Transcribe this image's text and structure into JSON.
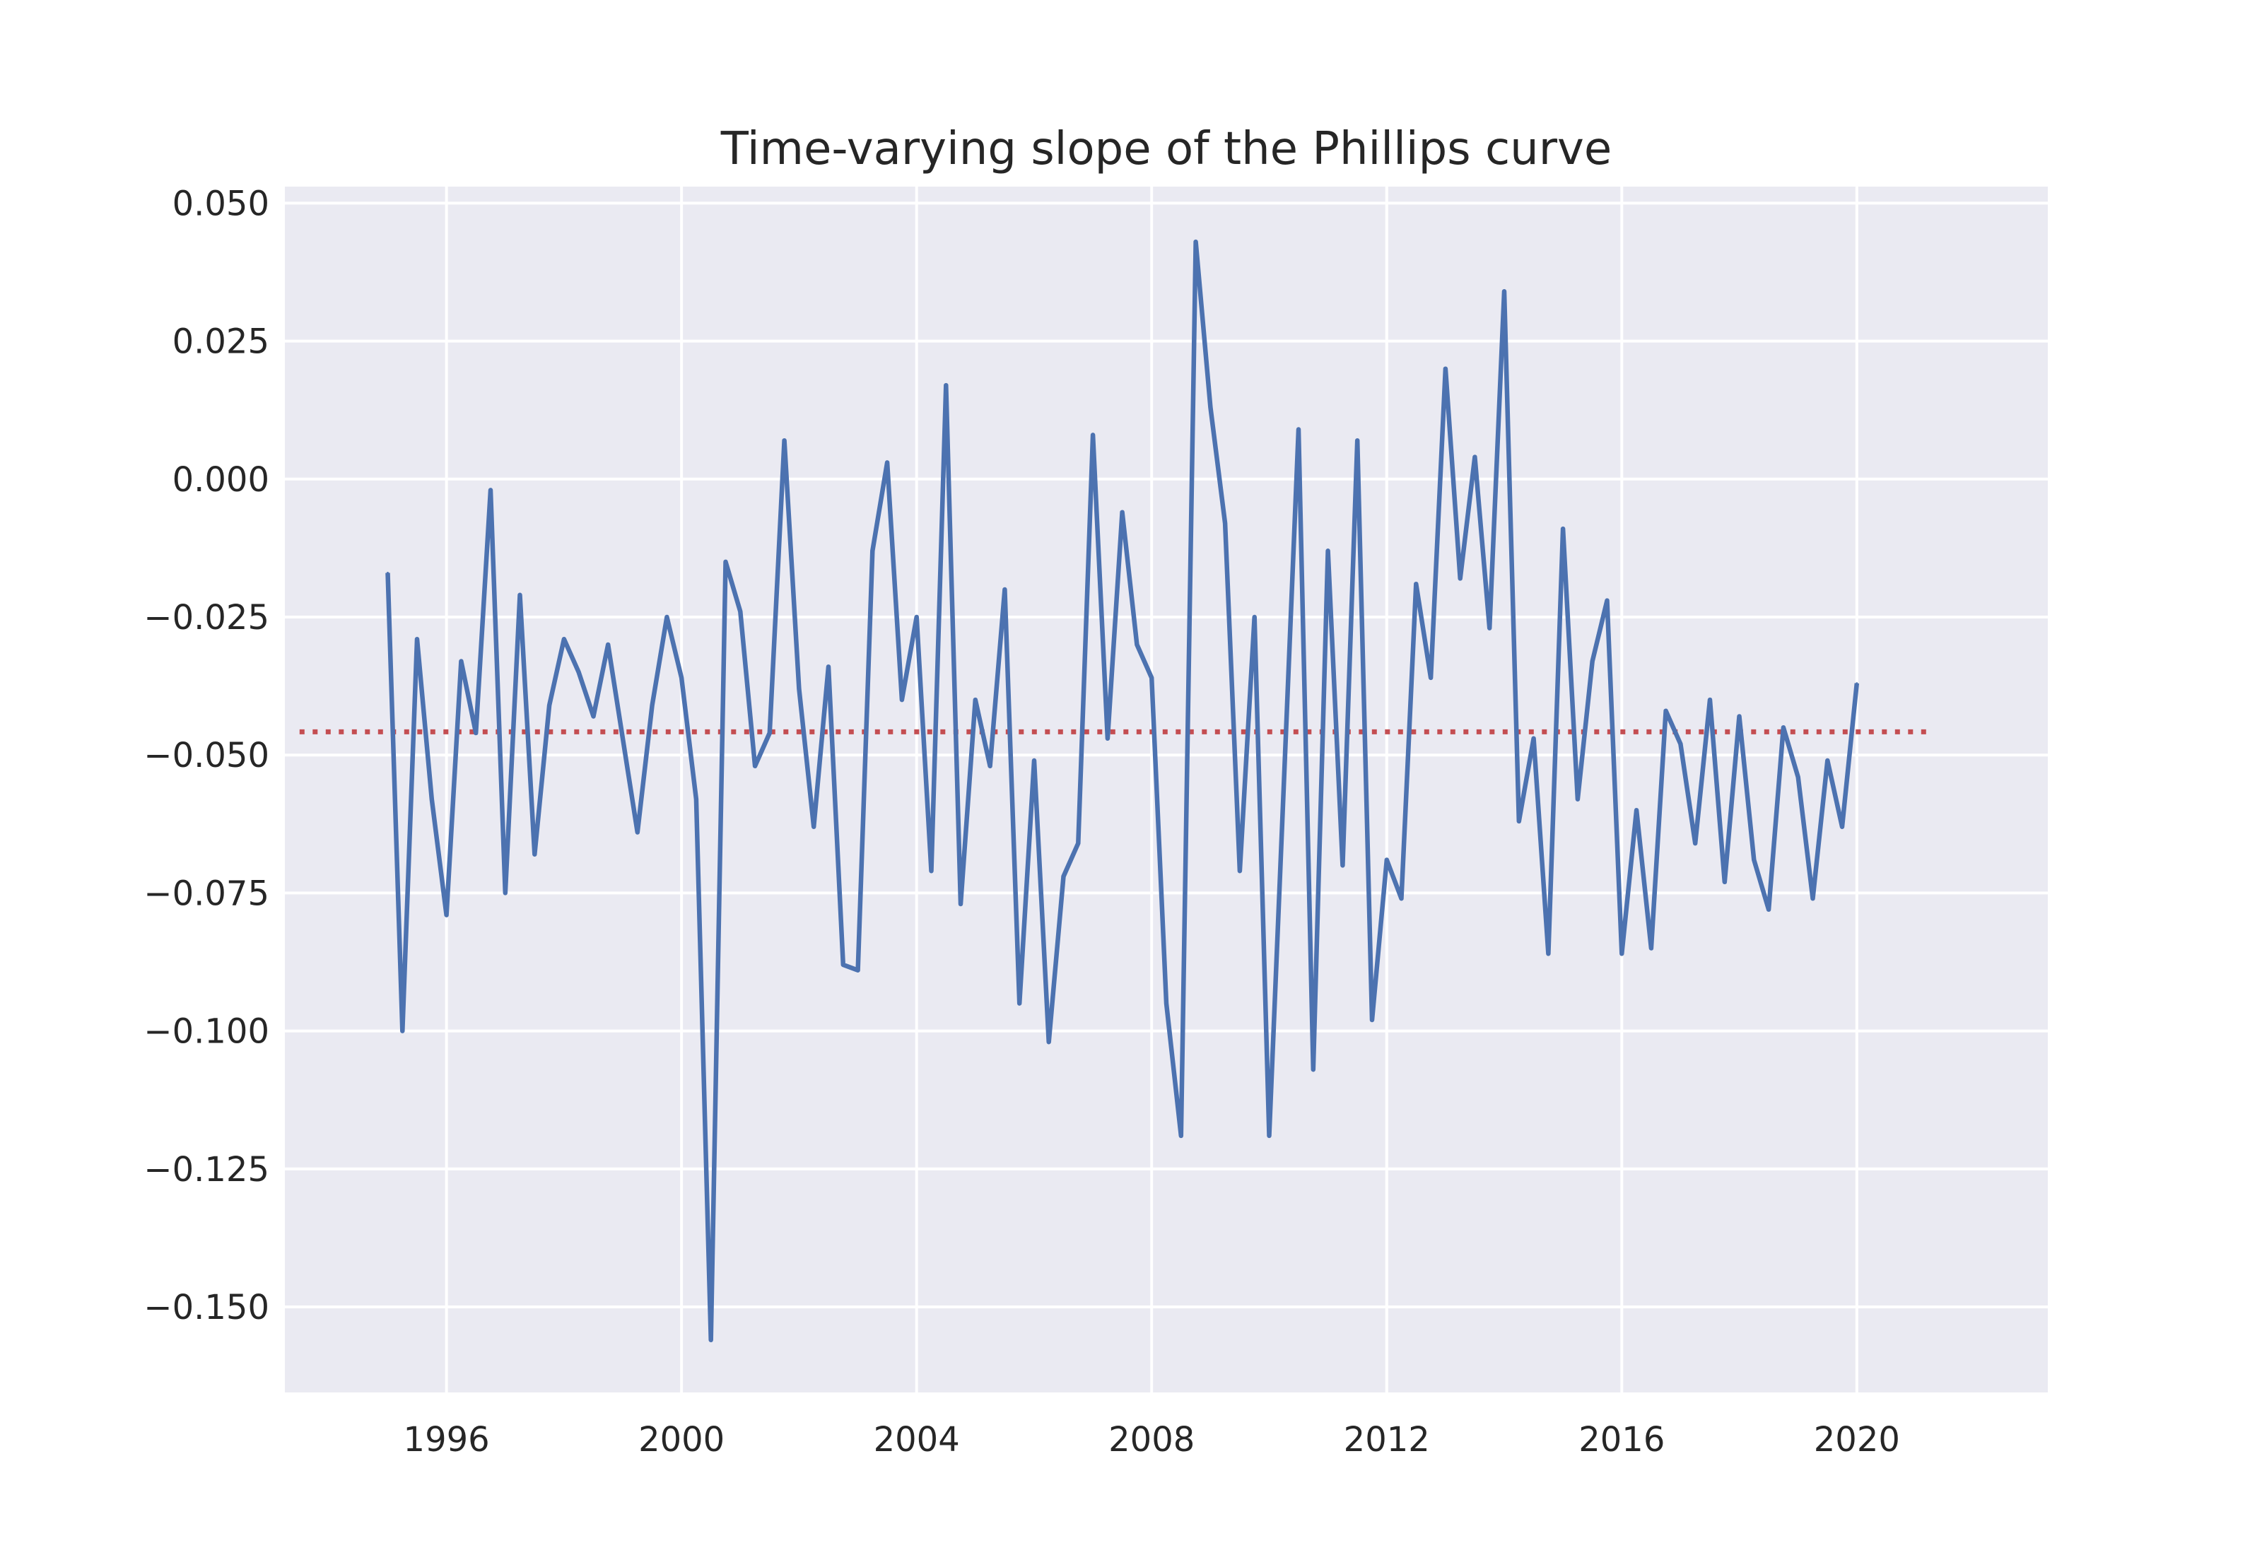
{
  "chart_data": {
    "type": "line",
    "title": "Time-varying slope of the Phillips curve",
    "xlabel": "",
    "ylabel": "",
    "x_axis": "date (quarterly)",
    "xlim": [
      1993.25,
      2023.25
    ],
    "ylim": [
      -0.1655,
      0.053
    ],
    "xticks": [
      1996,
      2000,
      2004,
      2008,
      2012,
      2016,
      2020
    ],
    "xtick_labels": [
      "1996",
      "2000",
      "2004",
      "2008",
      "2012",
      "2016",
      "2020"
    ],
    "yticks": [
      0.05,
      0.025,
      0.0,
      -0.025,
      -0.05,
      -0.075,
      -0.1,
      -0.125,
      -0.15
    ],
    "ytick_labels": [
      "0.050",
      "0.025",
      "0.000",
      "−0.025",
      "−0.050",
      "−0.075",
      "−0.100",
      "−0.125",
      "−0.150"
    ],
    "grid": true,
    "background": "#eaeaf2",
    "series": [
      {
        "style": "solid",
        "color": "#4c72b0",
        "x": [
          "1995-01",
          "1995-04",
          "1995-07",
          "1995-10",
          "1996-01",
          "1996-04",
          "1996-07",
          "1996-10",
          "1997-01",
          "1997-04",
          "1997-07",
          "1997-10",
          "1998-01",
          "1998-04",
          "1998-07",
          "1998-10",
          "1999-01",
          "1999-04",
          "1999-07",
          "1999-10",
          "2000-01",
          "2000-04",
          "2000-07",
          "2000-10",
          "2001-01",
          "2001-04",
          "2001-07",
          "2001-10",
          "2002-01",
          "2002-04",
          "2002-07",
          "2002-10",
          "2003-01",
          "2003-04",
          "2003-07",
          "2003-10",
          "2004-01",
          "2004-04",
          "2004-07",
          "2004-10",
          "2005-01",
          "2005-04",
          "2005-07",
          "2005-10",
          "2006-01",
          "2006-04",
          "2006-07",
          "2006-10",
          "2007-01",
          "2007-04",
          "2007-07",
          "2007-10",
          "2008-01",
          "2008-04",
          "2008-07",
          "2008-10",
          "2009-01",
          "2009-04",
          "2009-07",
          "2009-10",
          "2010-01",
          "2010-04",
          "2010-07",
          "2010-10",
          "2011-01",
          "2011-04",
          "2011-07",
          "2011-10",
          "2012-01",
          "2012-04",
          "2012-07",
          "2012-10",
          "2013-01",
          "2013-04",
          "2013-07",
          "2013-10",
          "2014-01",
          "2014-04",
          "2014-07",
          "2014-10",
          "2015-01",
          "2015-04",
          "2015-07",
          "2015-10",
          "2016-01",
          "2016-04",
          "2016-07",
          "2016-10",
          "2017-01",
          "2017-04",
          "2017-07",
          "2017-10",
          "2018-01",
          "2018-04",
          "2018-07",
          "2018-10",
          "2019-01",
          "2019-04",
          "2019-07",
          "2019-10",
          "2020-01"
        ],
        "values": [
          -0.017,
          -0.1,
          -0.029,
          -0.058,
          -0.079,
          -0.033,
          -0.046,
          -0.002,
          -0.075,
          -0.021,
          -0.068,
          -0.041,
          -0.029,
          -0.035,
          -0.043,
          -0.03,
          -0.047,
          -0.064,
          -0.041,
          -0.025,
          -0.036,
          -0.058,
          -0.156,
          -0.015,
          -0.024,
          -0.052,
          -0.046,
          0.007,
          -0.038,
          -0.063,
          -0.034,
          -0.088,
          -0.089,
          -0.013,
          0.003,
          -0.04,
          -0.025,
          -0.071,
          0.017,
          -0.077,
          -0.04,
          -0.052,
          -0.02,
          -0.095,
          -0.051,
          -0.102,
          -0.072,
          -0.066,
          0.008,
          -0.047,
          -0.006,
          -0.03,
          -0.036,
          -0.095,
          -0.119,
          0.043,
          0.013,
          -0.008,
          -0.071,
          -0.025,
          -0.119,
          -0.055,
          0.009,
          -0.107,
          -0.013,
          -0.07,
          0.007,
          -0.098,
          -0.069,
          -0.076,
          -0.019,
          -0.036,
          0.02,
          -0.018,
          0.004,
          -0.027,
          0.034,
          -0.062,
          -0.047,
          -0.086,
          -0.009,
          -0.058,
          -0.033,
          -0.022,
          -0.086,
          -0.06,
          -0.085,
          -0.042,
          -0.048,
          -0.066,
          -0.04,
          -0.073,
          -0.043,
          -0.069,
          -0.078,
          -0.045,
          -0.054,
          -0.076,
          -0.051,
          -0.063,
          -0.037
        ]
      },
      {
        "style": "dotted",
        "color": "#c44e52",
        "x": [
          "1993-07",
          "2021-04"
        ],
        "values": [
          -0.0458,
          -0.0458
        ]
      }
    ]
  }
}
